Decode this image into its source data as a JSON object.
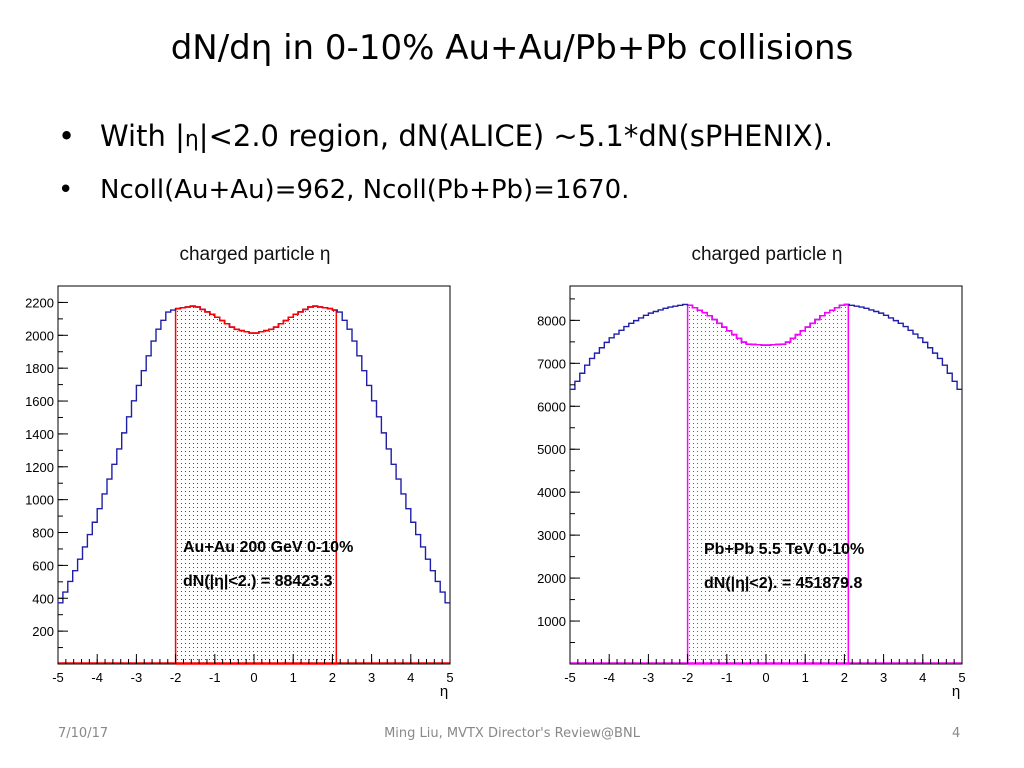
{
  "slide": {
    "title": "dN/dη in 0-10% Au+Au/Pb+Pb collisions",
    "bullets": [
      {
        "lead": "With |",
        "eta": "η",
        "rest": "|<2.0 region, dN(ALICE) ~5.1*dN(sPHENIX)."
      },
      {
        "text": "Ncoll(Au+Au)=962, Ncoll(Pb+Pb)=1670."
      }
    ]
  },
  "footer": {
    "date": "7/10/17",
    "center": "Ming Liu, MVTX Director's Review@BNL",
    "page": "4"
  },
  "colors": {
    "auau_outline": "#1f1faa",
    "auau_region": "#ff0000",
    "pbpb_outline": "#1f1faa",
    "pbpb_region": "#ff00ff"
  },
  "chart_data": [
    {
      "type": "line",
      "title": "charged particle η",
      "xlabel": "η",
      "ylabel": "",
      "xlim": [
        -5,
        5
      ],
      "ylim": [
        0,
        2300
      ],
      "yticks": [
        200,
        400,
        600,
        800,
        1000,
        1200,
        1400,
        1600,
        1800,
        2000,
        2200
      ],
      "xticks": [
        -5,
        -4,
        -3,
        -2,
        -1,
        0,
        1,
        2,
        3,
        4,
        5
      ],
      "series": [
        {
          "name": "",
          "x": [
            -5,
            -4.5,
            -4,
            -3.5,
            -3,
            -2.5,
            -2.2,
            -2,
            -1.5,
            -1,
            -0.5,
            0,
            0.5,
            1,
            1.5,
            2,
            2.2,
            2.5,
            3,
            3.5,
            4,
            4.5,
            5
          ],
          "y": [
            340,
            600,
            900,
            1260,
            1650,
            2010,
            2140,
            2160,
            2180,
            2120,
            2040,
            2010,
            2040,
            2120,
            2180,
            2160,
            2140,
            2010,
            1650,
            1260,
            900,
            600,
            340
          ]
        }
      ],
      "shaded_region": {
        "xmin": -2,
        "xmax": 2.1
      },
      "annotation": [
        "Au+Au 200 GeV 0-10%",
        "dN(|η|<2.) = 88423.3"
      ]
    },
    {
      "type": "line",
      "title": "charged particle η",
      "xlabel": "η",
      "ylabel": "",
      "xlim": [
        -5,
        5
      ],
      "ylim": [
        0,
        8800
      ],
      "yticks": [
        1000,
        2000,
        3000,
        4000,
        5000,
        6000,
        7000,
        8000
      ],
      "xticks": [
        -5,
        -4,
        -3,
        -2,
        -1,
        0,
        1,
        2,
        3,
        4,
        5
      ],
      "series": [
        {
          "name": "",
          "x": [
            -5,
            -4.5,
            -4,
            -3.5,
            -3,
            -2.5,
            -2,
            -1.5,
            -1,
            -0.5,
            0,
            0.5,
            1,
            1.5,
            2,
            2.5,
            3,
            3.5,
            4,
            4.5,
            5
          ],
          "y": [
            6300,
            7050,
            7550,
            7900,
            8150,
            8300,
            8380,
            8150,
            7800,
            7450,
            7420,
            7450,
            7800,
            8150,
            8380,
            8300,
            8150,
            7900,
            7550,
            7050,
            6300
          ]
        }
      ],
      "shaded_region": {
        "xmin": -2,
        "xmax": 2.1
      },
      "annotation": [
        "Pb+Pb 5.5 TeV 0-10%",
        "dN(|η|<2). = 451879.8"
      ]
    }
  ]
}
